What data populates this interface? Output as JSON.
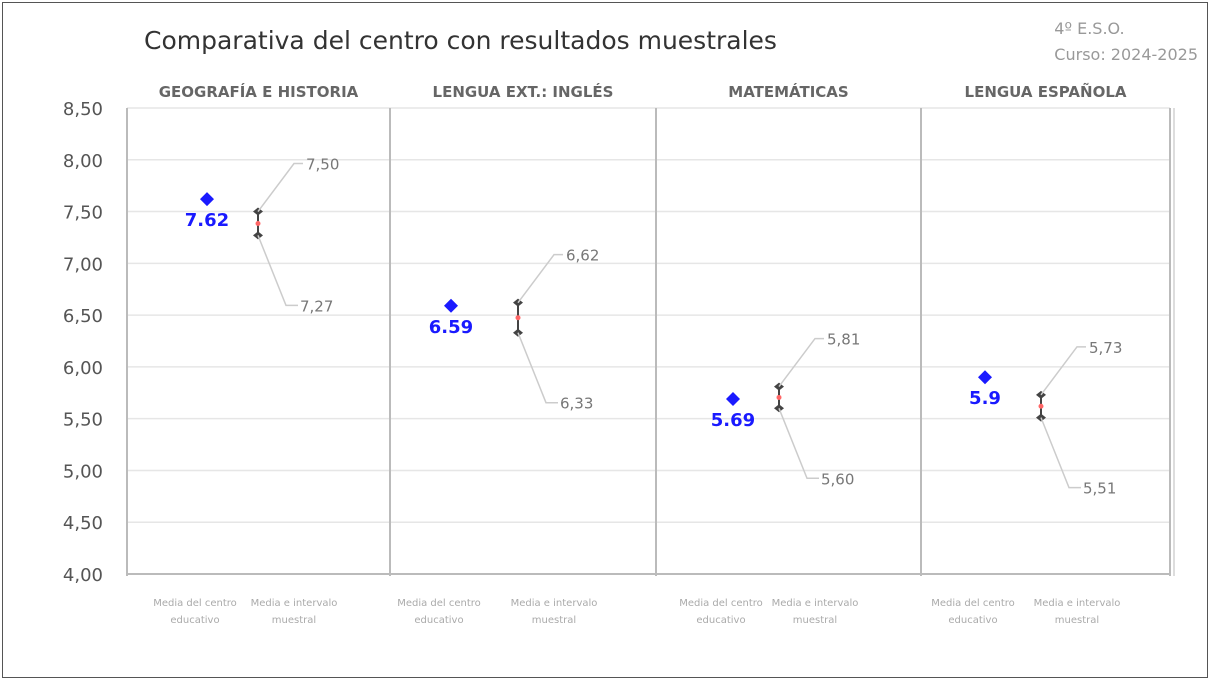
{
  "title": "Comparativa del centro con resultados muestrales",
  "course": {
    "level": "4º E.S.O.",
    "year": "Curso: 2024-2025"
  },
  "chart_data": {
    "type": "scatter",
    "title": "Comparativa del centro con resultados muestrales",
    "ylim": [
      4.0,
      8.5
    ],
    "yticks": [
      "4,00",
      "4,50",
      "5,00",
      "5,50",
      "6,00",
      "6,50",
      "7,00",
      "7,50",
      "8,00",
      "8,50"
    ],
    "grid": true,
    "category_labels": [
      "Media del centro educativo",
      "Media e intervalo muestral"
    ],
    "panels": [
      {
        "subject": "GEOGRAFÍA E HISTORIA",
        "center_mean": 7.62,
        "center_label": "7.62",
        "interval_low": 7.27,
        "interval_high": 7.5,
        "low_label": "7,27",
        "high_label": "7,50"
      },
      {
        "subject": "LENGUA EXT.: INGLÉS",
        "center_mean": 6.59,
        "center_label": "6.59",
        "interval_low": 6.33,
        "interval_high": 6.62,
        "low_label": "6,33",
        "high_label": "6,62"
      },
      {
        "subject": "MATEMÁTICAS",
        "center_mean": 5.69,
        "center_label": "5.69",
        "interval_low": 5.6,
        "interval_high": 5.81,
        "low_label": "5,60",
        "high_label": "5,81"
      },
      {
        "subject": "LENGUA ESPAÑOLA",
        "center_mean": 5.9,
        "center_label": "5.9",
        "interval_low": 5.51,
        "interval_high": 5.73,
        "low_label": "5,51",
        "high_label": "5,73"
      }
    ],
    "colors": {
      "center": "#1a1aff",
      "interval": "#444444",
      "interval_mean": "#ff6666",
      "grid": "#e6e6e6",
      "divider": "#bbbbbb"
    }
  }
}
